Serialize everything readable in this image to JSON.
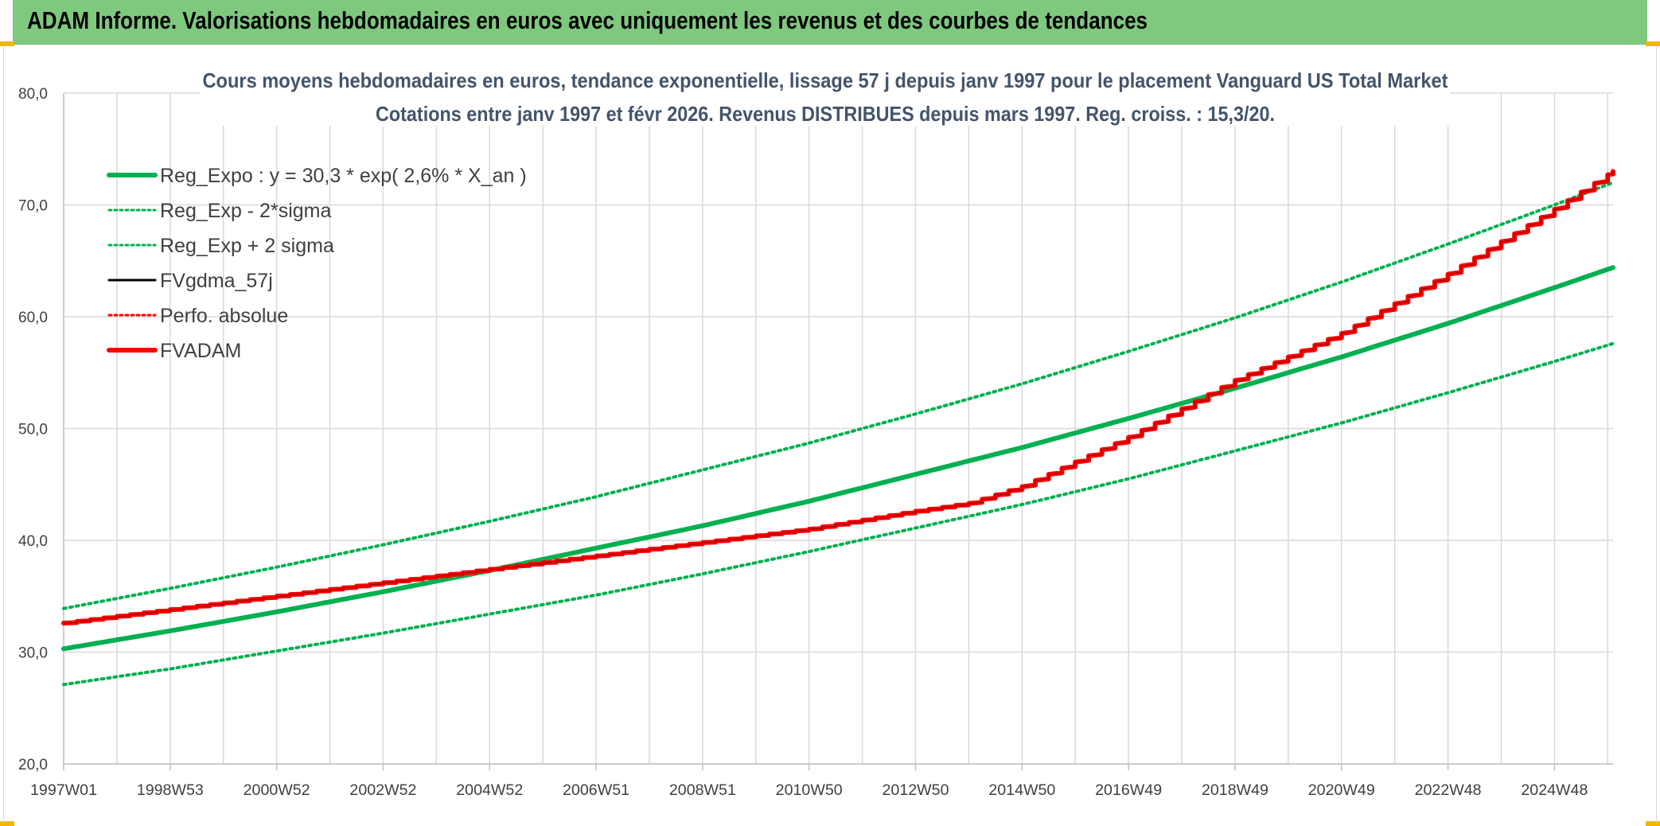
{
  "header": {
    "title": "ADAM Informe. Valorisations hebdomadaires en euros avec uniquement les revenus et des courbes de tendances"
  },
  "colors": {
    "banner": "#7fc97e",
    "regression": "#00b050",
    "adam": "#ff0000",
    "gdma": "#000000",
    "grid": "#d9d9d9",
    "title": "#44546a"
  },
  "chart_data": {
    "type": "line",
    "title": "Cours moyens hebdomadaires en euros, tendance exponentielle, lissage 57 j depuis janv 1997 pour le placement Vanguard US Total Market",
    "subtitle": "Cotations entre janv 1997 et févr 2026. Revenus DISTRIBUES depuis mars 1997. Reg. croiss. : 15,3/20.",
    "xlabel": "",
    "ylabel": "",
    "ylim": [
      20,
      80
    ],
    "xlim": [
      1997.0,
      2026.1
    ],
    "y_ticks": [
      "20,0",
      "30,0",
      "40,0",
      "50,0",
      "60,0",
      "70,0",
      "80,0"
    ],
    "y_tick_values": [
      20,
      30,
      40,
      50,
      60,
      70,
      80
    ],
    "x_tick_labels": [
      "1997W01",
      "1998W53",
      "2000W52",
      "2002W52",
      "2004W52",
      "2006W51",
      "2008W51",
      "2010W50",
      "2012W50",
      "2014W50",
      "2016W49",
      "2018W49",
      "2020W49",
      "2022W48",
      "2024W48"
    ],
    "x_tick_years": [
      1997,
      1999,
      2001,
      2003,
      2005,
      2007,
      2009,
      2011,
      2013,
      2015,
      2017,
      2019,
      2021,
      2023,
      2025
    ],
    "legend": [
      {
        "label": "Reg_Expo : y = 30,3 * exp( 2,6% *  X_an )",
        "style": "solid-thick",
        "color": "#00b050"
      },
      {
        "label": "Reg_Exp - 2*sigma",
        "style": "dotted",
        "color": "#00b050"
      },
      {
        "label": "Reg_Exp + 2 sigma",
        "style": "dotted",
        "color": "#00b050"
      },
      {
        "label": "FVgdma_57j",
        "style": "solid",
        "color": "#000000"
      },
      {
        "label": "Perfo. absolue",
        "style": "dotted",
        "color": "#ff0000"
      },
      {
        "label": "FVADAM",
        "style": "solid-thick",
        "color": "#ff0000"
      }
    ],
    "series": [
      {
        "name": "Reg_Expo",
        "x": [
          1997,
          1999,
          2001,
          2003,
          2005,
          2007,
          2009,
          2011,
          2013,
          2015,
          2017,
          2019,
          2021,
          2023,
          2025,
          2026.1
        ],
        "values": [
          30.3,
          31.9,
          33.6,
          35.4,
          37.3,
          39.3,
          41.3,
          43.5,
          45.9,
          48.3,
          50.9,
          53.6,
          56.4,
          59.4,
          62.6,
          64.4
        ]
      },
      {
        "name": "Reg_Exp - 2*sigma",
        "x": [
          1997,
          1999,
          2001,
          2003,
          2005,
          2007,
          2009,
          2011,
          2013,
          2015,
          2017,
          2019,
          2021,
          2023,
          2025,
          2026.1
        ],
        "values": [
          27.1,
          28.5,
          30.1,
          31.7,
          33.4,
          35.1,
          37.0,
          39.0,
          41.1,
          43.2,
          45.5,
          48.0,
          50.5,
          53.2,
          56.0,
          57.6
        ]
      },
      {
        "name": "Reg_Exp + 2 sigma",
        "x": [
          1997,
          1999,
          2001,
          2003,
          2005,
          2007,
          2009,
          2011,
          2013,
          2015,
          2017,
          2019,
          2021,
          2023,
          2025,
          2026.1
        ],
        "values": [
          33.9,
          35.7,
          37.6,
          39.6,
          41.7,
          43.9,
          46.3,
          48.7,
          51.3,
          54.0,
          56.9,
          59.9,
          63.1,
          66.5,
          70.0,
          72.0
        ]
      },
      {
        "name": "FVADAM",
        "x": [
          1997,
          1999,
          2001,
          2003,
          2005,
          2007,
          2009,
          2011,
          2013,
          2014,
          2015,
          2017,
          2019,
          2021,
          2023,
          2025,
          2026.1
        ],
        "values": [
          32.6,
          33.8,
          35.0,
          36.2,
          37.4,
          38.6,
          39.8,
          41.0,
          42.6,
          43.3,
          44.8,
          49.2,
          54.3,
          58.5,
          63.8,
          69.6,
          73.0
        ]
      }
    ]
  }
}
